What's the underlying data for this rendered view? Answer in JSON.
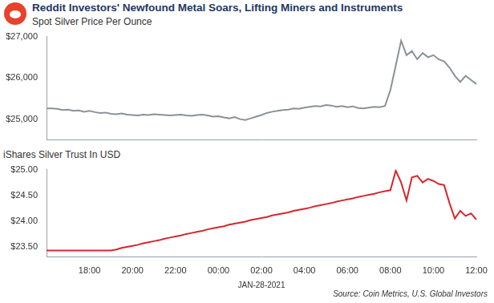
{
  "title": "Reddit Investors' Newfound Metal Soars, Lifting Miners and Instruments",
  "source": "Source: Coin Metrics, U.S. Global Investors",
  "chart_data": [
    {
      "type": "line",
      "title": "Spot Silver Price Per Ounce",
      "categories": [
        null,
        null,
        null,
        null,
        null,
        null,
        null,
        null,
        "18:00",
        null,
        null,
        null,
        null,
        null,
        null,
        null,
        "20:00",
        null,
        null,
        null,
        null,
        null,
        null,
        null,
        "22:00",
        null,
        null,
        null,
        null,
        null,
        null,
        null,
        "00:00",
        null,
        null,
        null,
        null,
        null,
        null,
        null,
        "02:00",
        null,
        null,
        null,
        null,
        null,
        null,
        null,
        "04:00",
        null,
        null,
        null,
        null,
        null,
        null,
        null,
        "06:00",
        null,
        null,
        null,
        null,
        null,
        null,
        null,
        "08:00",
        null,
        null,
        null,
        null,
        null,
        null,
        null,
        "10:00",
        null,
        null,
        null,
        null,
        null,
        null,
        null,
        "12:00"
      ],
      "values": [
        25260,
        25260,
        25250,
        25220,
        25230,
        25200,
        25210,
        25180,
        25200,
        25170,
        25150,
        25160,
        25130,
        25120,
        25140,
        25110,
        25100,
        25090,
        25110,
        25100,
        25120,
        25110,
        25100,
        25090,
        25100,
        25110,
        25090,
        25080,
        25100,
        25110,
        25090,
        25060,
        25070,
        25040,
        25020,
        25050,
        25000,
        24980,
        25020,
        25060,
        25100,
        25150,
        25180,
        25200,
        25220,
        25230,
        25260,
        25250,
        25280,
        25300,
        25320,
        25310,
        25340,
        25330,
        25300,
        25320,
        25290,
        25310,
        25270,
        25260,
        25280,
        25300,
        25290,
        25320,
        25700,
        26300,
        26900,
        26550,
        26650,
        26450,
        26600,
        26500,
        26550,
        26450,
        26400,
        26250,
        26050,
        25900,
        26050,
        25950,
        25850
      ],
      "color": "#8a9299",
      "ylim": [
        24500,
        27000
      ],
      "yticks": [
        {
          "value": 25000,
          "label": "$25,000"
        },
        {
          "value": 26000,
          "label": "$26,000"
        },
        {
          "value": 27000,
          "label": "$27,000"
        }
      ],
      "grid": false,
      "tick_labels": "y"
    },
    {
      "type": "line",
      "title": "iShares Silver Trust In USD",
      "xlabel": "JAN-28-2021",
      "categories": [
        null,
        null,
        null,
        null,
        null,
        null,
        null,
        null,
        "18:00",
        null,
        null,
        null,
        null,
        null,
        null,
        null,
        "20:00",
        null,
        null,
        null,
        null,
        null,
        null,
        null,
        "22:00",
        null,
        null,
        null,
        null,
        null,
        null,
        null,
        "00:00",
        null,
        null,
        null,
        null,
        null,
        null,
        null,
        "02:00",
        null,
        null,
        null,
        null,
        null,
        null,
        null,
        "04:00",
        null,
        null,
        null,
        null,
        null,
        null,
        null,
        "06:00",
        null,
        null,
        null,
        null,
        null,
        null,
        null,
        "08:00",
        null,
        null,
        null,
        null,
        null,
        null,
        null,
        "10:00",
        null,
        null,
        null,
        null,
        null,
        null,
        null,
        "12:00"
      ],
      "values": [
        23.43,
        23.43,
        23.43,
        23.43,
        23.43,
        23.43,
        23.43,
        23.43,
        23.43,
        23.43,
        23.43,
        23.43,
        23.43,
        23.45,
        23.48,
        23.5,
        23.52,
        23.54,
        23.57,
        23.59,
        23.61,
        23.63,
        23.66,
        23.68,
        23.7,
        23.72,
        23.75,
        23.77,
        23.79,
        23.81,
        23.84,
        23.86,
        23.88,
        23.9,
        23.93,
        23.95,
        23.97,
        23.99,
        24.02,
        24.04,
        24.06,
        24.08,
        24.11,
        24.13,
        24.15,
        24.17,
        24.2,
        24.22,
        24.24,
        24.26,
        24.29,
        24.31,
        24.33,
        24.35,
        24.38,
        24.4,
        24.42,
        24.44,
        24.47,
        24.49,
        24.51,
        24.53,
        24.56,
        24.58,
        24.6,
        24.98,
        24.75,
        24.4,
        24.85,
        24.88,
        24.75,
        24.82,
        24.78,
        24.72,
        24.7,
        24.35,
        24.05,
        24.2,
        24.1,
        24.15,
        24.03
      ],
      "color": "#d7262e",
      "ylim": [
        23.3,
        25.0
      ],
      "yticks": [
        {
          "value": 23.5,
          "label": "$23.50"
        },
        {
          "value": 24,
          "label": "$24.00"
        },
        {
          "value": 24.5,
          "label": "$24.50"
        },
        {
          "value": 25,
          "label": "$25.00"
        }
      ],
      "grid": false
    }
  ]
}
